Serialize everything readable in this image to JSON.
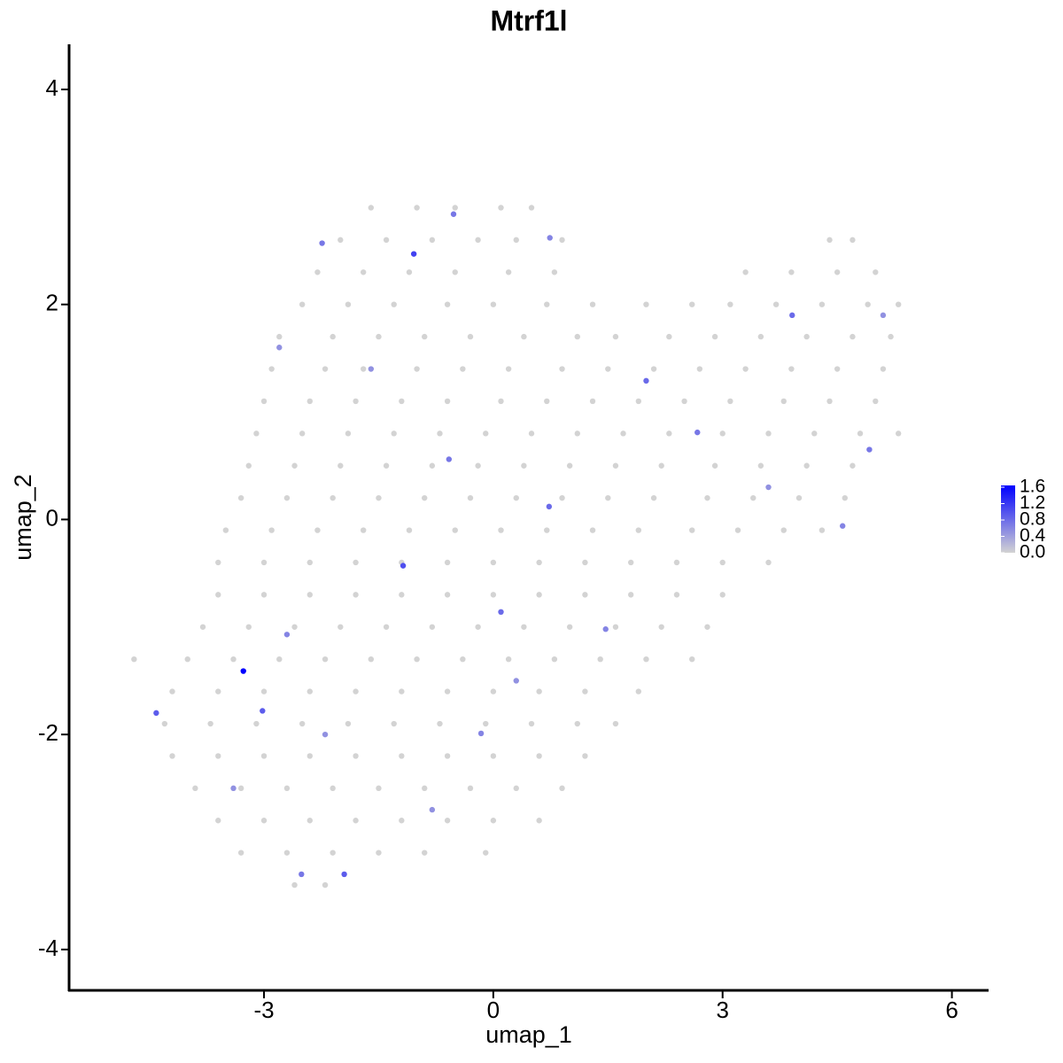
{
  "chart_data": {
    "type": "scatter",
    "title": "Mtrf1l",
    "x_label": "umap_1",
    "y_label": "umap_2",
    "xlim": [
      -5.55,
      6.48
    ],
    "ylim": [
      -4.38,
      4.42
    ],
    "xticks": [
      -3,
      0,
      3,
      6
    ],
    "yticks": [
      -4,
      -2,
      0,
      2,
      4
    ],
    "colorlim": [
      0,
      1.6
    ],
    "colors": [
      "#d3d3d3",
      "#0000ff"
    ],
    "colorbar_ticks": [
      {
        "value": 0,
        "label": "0.0"
      },
      0.4,
      0.8,
      1.2,
      1.6
    ],
    "x": [
      -1.6,
      -1.0,
      -0.5,
      0.1,
      0.5,
      -2.0,
      -1.4,
      -0.8,
      -0.2,
      0.3,
      0.9,
      4.4,
      4.7,
      -2.3,
      -1.7,
      -1.1,
      -0.5,
      0.2,
      0.8,
      3.3,
      3.9,
      4.5,
      5.0,
      -2.5,
      -1.9,
      -1.3,
      -0.6,
      0.0,
      0.7,
      1.3,
      2.0,
      2.6,
      3.1,
      3.7,
      4.3,
      4.9,
      5.3,
      -2.8,
      -2.1,
      -1.5,
      -0.9,
      -0.3,
      0.4,
      1.1,
      1.6,
      2.3,
      2.9,
      3.5,
      4.1,
      4.7,
      5.2,
      -2.9,
      -2.2,
      -1.7,
      -1.0,
      -0.4,
      0.2,
      0.9,
      1.5,
      2.1,
      2.7,
      3.3,
      3.9,
      4.5,
      5.1,
      -3.0,
      -2.4,
      -1.8,
      -1.2,
      -0.6,
      0.1,
      0.7,
      1.3,
      1.9,
      2.5,
      3.1,
      3.8,
      4.4,
      5.0,
      -3.1,
      -2.5,
      -1.9,
      -1.3,
      -0.7,
      -0.1,
      0.5,
      1.1,
      1.7,
      2.3,
      3.0,
      3.6,
      4.2,
      4.8,
      5.3,
      -3.2,
      -2.6,
      -2.0,
      -1.4,
      -0.8,
      -0.2,
      0.4,
      1.0,
      1.6,
      2.2,
      2.9,
      3.5,
      4.1,
      4.7,
      -3.3,
      -2.7,
      -2.1,
      -1.5,
      -0.9,
      -0.3,
      0.3,
      0.9,
      1.5,
      2.1,
      2.8,
      3.4,
      4.0,
      4.6,
      -3.5,
      -2.9,
      -2.3,
      -1.7,
      -1.1,
      -0.5,
      0.1,
      0.7,
      1.3,
      1.9,
      2.6,
      3.2,
      3.8,
      4.3,
      -3.6,
      -3.0,
      -2.4,
      -1.8,
      -1.2,
      -0.6,
      0.0,
      0.6,
      1.2,
      1.8,
      2.4,
      3.0,
      3.6,
      -3.6,
      -3.0,
      -2.4,
      -1.8,
      -1.2,
      -0.6,
      0.0,
      0.6,
      1.2,
      1.8,
      2.4,
      3.0,
      -3.8,
      -3.2,
      -2.6,
      -2.0,
      -1.4,
      -0.8,
      -0.2,
      0.4,
      1.0,
      1.6,
      2.2,
      2.8,
      -4.7,
      -4.0,
      -3.4,
      -2.8,
      -2.2,
      -1.6,
      -1.0,
      -0.4,
      0.2,
      0.8,
      1.4,
      2.0,
      2.6,
      -4.2,
      -3.6,
      -3.0,
      -2.4,
      -1.8,
      -1.2,
      -0.6,
      0.0,
      0.6,
      1.2,
      1.9,
      -4.3,
      -3.7,
      -3.1,
      -2.5,
      -1.9,
      -1.3,
      -0.7,
      -0.1,
      0.5,
      1.1,
      1.6,
      -4.2,
      -3.6,
      -3.0,
      -2.4,
      -1.8,
      -1.2,
      -0.6,
      0.0,
      0.6,
      1.2,
      -3.9,
      -3.3,
      -2.7,
      -2.1,
      -1.5,
      -0.9,
      -0.3,
      0.3,
      0.9,
      -3.6,
      -3.0,
      -2.4,
      -1.8,
      -1.2,
      -0.6,
      0.0,
      0.6,
      -3.3,
      -2.7,
      -2.1,
      -1.5,
      -0.9,
      -0.1,
      -2.6,
      -2.2,
      -1.6,
      -2.2,
      0.3,
      3.6,
      -3.4,
      -0.8,
      5.1,
      -2.8,
      4.57,
      2.67,
      1.47,
      -2.51,
      0.74,
      -0.16,
      -2.7,
      -0.58,
      0.73,
      -2.24,
      -0.52,
      4.92,
      2.0,
      3.91,
      0.1,
      -4.41,
      -1.95,
      -3.02,
      -1.18,
      -1.04,
      -3.27
    ],
    "y": [
      2.9,
      2.9,
      2.9,
      2.9,
      2.9,
      2.6,
      2.6,
      2.6,
      2.6,
      2.6,
      2.6,
      2.6,
      2.6,
      2.3,
      2.3,
      2.3,
      2.3,
      2.3,
      2.3,
      2.3,
      2.3,
      2.3,
      2.3,
      2.0,
      2.0,
      2.0,
      2.0,
      2.0,
      2.0,
      2.0,
      2.0,
      2.0,
      2.0,
      2.0,
      2.0,
      2.0,
      2.0,
      1.7,
      1.7,
      1.7,
      1.7,
      1.7,
      1.7,
      1.7,
      1.7,
      1.7,
      1.7,
      1.7,
      1.7,
      1.7,
      1.7,
      1.4,
      1.4,
      1.4,
      1.4,
      1.4,
      1.4,
      1.4,
      1.4,
      1.4,
      1.4,
      1.4,
      1.4,
      1.4,
      1.4,
      1.1,
      1.1,
      1.1,
      1.1,
      1.1,
      1.1,
      1.1,
      1.1,
      1.1,
      1.1,
      1.1,
      1.1,
      1.1,
      1.1,
      0.8,
      0.8,
      0.8,
      0.8,
      0.8,
      0.8,
      0.8,
      0.8,
      0.8,
      0.8,
      0.8,
      0.8,
      0.8,
      0.8,
      0.8,
      0.5,
      0.5,
      0.5,
      0.5,
      0.5,
      0.5,
      0.5,
      0.5,
      0.5,
      0.5,
      0.5,
      0.5,
      0.5,
      0.5,
      0.2,
      0.2,
      0.2,
      0.2,
      0.2,
      0.2,
      0.2,
      0.2,
      0.2,
      0.2,
      0.2,
      0.2,
      0.2,
      0.2,
      -0.1,
      -0.1,
      -0.1,
      -0.1,
      -0.1,
      -0.1,
      -0.1,
      -0.1,
      -0.1,
      -0.1,
      -0.1,
      -0.1,
      -0.1,
      -0.1,
      -0.4,
      -0.4,
      -0.4,
      -0.4,
      -0.4,
      -0.4,
      -0.4,
      -0.4,
      -0.4,
      -0.4,
      -0.4,
      -0.4,
      -0.4,
      -0.7,
      -0.7,
      -0.7,
      -0.7,
      -0.7,
      -0.7,
      -0.7,
      -0.7,
      -0.7,
      -0.7,
      -0.7,
      -0.7,
      -1.0,
      -1.0,
      -1.0,
      -1.0,
      -1.0,
      -1.0,
      -1.0,
      -1.0,
      -1.0,
      -1.0,
      -1.0,
      -1.0,
      -1.3,
      -1.3,
      -1.3,
      -1.3,
      -1.3,
      -1.3,
      -1.3,
      -1.3,
      -1.3,
      -1.3,
      -1.3,
      -1.3,
      -1.3,
      -1.6,
      -1.6,
      -1.6,
      -1.6,
      -1.6,
      -1.6,
      -1.6,
      -1.6,
      -1.6,
      -1.6,
      -1.6,
      -1.9,
      -1.9,
      -1.9,
      -1.9,
      -1.9,
      -1.9,
      -1.9,
      -1.9,
      -1.9,
      -1.9,
      -1.9,
      -2.2,
      -2.2,
      -2.2,
      -2.2,
      -2.2,
      -2.2,
      -2.2,
      -2.2,
      -2.2,
      -2.2,
      -2.5,
      -2.5,
      -2.5,
      -2.5,
      -2.5,
      -2.5,
      -2.5,
      -2.5,
      -2.5,
      -2.8,
      -2.8,
      -2.8,
      -2.8,
      -2.8,
      -2.8,
      -2.8,
      -2.8,
      -3.1,
      -3.1,
      -3.1,
      -3.1,
      -3.1,
      -3.1,
      -3.4,
      -3.4,
      1.4,
      -2.0,
      -1.5,
      0.3,
      -2.5,
      -2.7,
      1.9,
      1.6,
      -0.06,
      0.81,
      -1.02,
      -3.3,
      2.62,
      -1.99,
      -1.07,
      0.56,
      0.12,
      2.57,
      2.84,
      0.65,
      1.29,
      1.9,
      -0.86,
      -1.8,
      -3.3,
      -1.78,
      -0.43,
      2.47,
      -1.41
    ],
    "expression": [
      0,
      0,
      0,
      0,
      0,
      0,
      0,
      0,
      0,
      0,
      0,
      0,
      0,
      0,
      0,
      0,
      0,
      0,
      0,
      0,
      0,
      0,
      0,
      0,
      0,
      0,
      0,
      0,
      0,
      0,
      0,
      0,
      0,
      0,
      0,
      0,
      0,
      0,
      0,
      0,
      0,
      0,
      0,
      0,
      0,
      0,
      0,
      0,
      0,
      0,
      0,
      0,
      0,
      0,
      0,
      0,
      0,
      0,
      0,
      0,
      0,
      0,
      0,
      0,
      0,
      0,
      0,
      0,
      0,
      0,
      0,
      0,
      0,
      0,
      0,
      0,
      0,
      0,
      0,
      0,
      0,
      0,
      0,
      0,
      0,
      0,
      0,
      0,
      0,
      0,
      0,
      0,
      0,
      0,
      0,
      0,
      0,
      0,
      0,
      0,
      0,
      0,
      0,
      0,
      0,
      0,
      0,
      0,
      0,
      0,
      0,
      0,
      0,
      0,
      0,
      0,
      0,
      0,
      0,
      0,
      0,
      0,
      0,
      0,
      0,
      0,
      0,
      0,
      0,
      0,
      0,
      0,
      0,
      0,
      0,
      0,
      0,
      0,
      0,
      0,
      0,
      0,
      0,
      0,
      0,
      0,
      0,
      0,
      0,
      0,
      0,
      0,
      0,
      0,
      0,
      0,
      0,
      0,
      0,
      0,
      0,
      0,
      0,
      0,
      0,
      0,
      0,
      0,
      0,
      0,
      0,
      0,
      0,
      0,
      0,
      0,
      0,
      0,
      0,
      0,
      0,
      0,
      0,
      0,
      0,
      0,
      0,
      0,
      0,
      0,
      0,
      0,
      0,
      0,
      0,
      0,
      0,
      0,
      0,
      0,
      0,
      0,
      0,
      0,
      0,
      0,
      0,
      0,
      0,
      0,
      0,
      0,
      0,
      0,
      0,
      0,
      0,
      0,
      0,
      0,
      0,
      0,
      0,
      0,
      0,
      0,
      0,
      0,
      0,
      0,
      0,
      0,
      0,
      0,
      0,
      0,
      0,
      0,
      0,
      0,
      0,
      0,
      0,
      0.5,
      0.5,
      0.5,
      0.5,
      0.5,
      0.5,
      0.5,
      0.5,
      0.6,
      0.7,
      0.6,
      0.7,
      0.6,
      0.6,
      0.6,
      0.7,
      0.8,
      0.7,
      0.7,
      0.7,
      0.8,
      0.8,
      0.8,
      0.9,
      0.9,
      0.9,
      1.0,
      1.1,
      1.6
    ]
  }
}
